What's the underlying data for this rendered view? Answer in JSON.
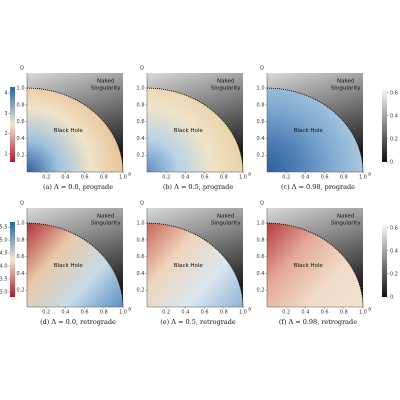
{
  "chart_data": [
    {
      "type": "heatmap",
      "caption": "(a) Λ = 0.0, prograde",
      "xlabel": "a",
      "ylabel": "Q",
      "xlim": [
        0,
        1
      ],
      "ylim": [
        0,
        1.18
      ],
      "xticks": [
        0.2,
        0.4,
        0.6,
        0.8,
        {
          "value": 1,
          "label": "1.0"
        }
      ],
      "yticks": [
        0.2,
        0.4,
        0.6,
        0.8,
        {
          "value": 1,
          "label": "1.0"
        }
      ],
      "region_labels": [
        "Black Hole",
        "Naked",
        "Singularity"
      ],
      "gradient": "radial",
      "colors": [
        "#2f5f9e",
        "#9fc3dd",
        "#efe3c8",
        "#e8c49a"
      ],
      "naked_colors": [
        "#d9d9d9",
        "#1a1a1a"
      ],
      "colorbar": {
        "side": "left",
        "lim": [
          0.6,
          4.3
        ],
        "ticks": [
          1,
          2,
          3,
          4
        ],
        "colors": [
          "#b2182b",
          "#f4e5d0",
          "#2166ac"
        ]
      }
    },
    {
      "type": "heatmap",
      "caption": "(b) Λ = 0.5, prograde",
      "xlabel": "a",
      "ylabel": "Q",
      "xlim": [
        0,
        1
      ],
      "ylim": [
        0,
        1.18
      ],
      "xticks": [
        0.2,
        0.4,
        0.6,
        0.8,
        {
          "value": 1,
          "label": "1.0"
        }
      ],
      "yticks": [
        0.2,
        0.4,
        0.6,
        0.8,
        {
          "value": 1,
          "label": "1.0"
        }
      ],
      "region_labels": [
        "Black Hole",
        "Naked",
        "Singularity"
      ],
      "gradient": "radial",
      "colors": [
        "#5f8fc0",
        "#b8d3e6",
        "#eee3c9",
        "#ecd2a8"
      ],
      "naked_colors": [
        "#d9d9d9",
        "#1a1a1a"
      ]
    },
    {
      "type": "heatmap",
      "caption": "(c) Λ = 0.98, prograde",
      "xlabel": "a",
      "ylabel": "Q",
      "xlim": [
        0,
        1
      ],
      "ylim": [
        0,
        1.18
      ],
      "xticks": [
        0.2,
        0.4,
        0.6,
        0.8,
        {
          "value": 1,
          "label": "1.0"
        }
      ],
      "yticks": [
        0.2,
        0.4,
        0.6,
        0.8,
        {
          "value": 1,
          "label": "1.0"
        }
      ],
      "region_labels": [
        "Black Hole",
        "Naked",
        "Singularity"
      ],
      "gradient": "radial",
      "colors": [
        "#2f5f9e",
        "#4e7fb6",
        "#7ea9cf",
        "#a9c8e0"
      ],
      "naked_colors": [
        "#d9d9d9",
        "#1a1a1a"
      ],
      "colorbar": {
        "side": "right",
        "lim": [
          0,
          0.65
        ],
        "ticks": [
          {
            "value": 0,
            "label": "0."
          },
          0.2,
          0.4,
          0.6
        ],
        "colors": [
          "#111111",
          "#ffffff"
        ]
      }
    },
    {
      "type": "heatmap",
      "caption": "(d) Λ = 0.0, retrograde",
      "xlabel": "a",
      "ylabel": "Q",
      "xlim": [
        0,
        1
      ],
      "ylim": [
        0,
        1.18
      ],
      "xticks": [
        0.2,
        0.4,
        0.6,
        0.8,
        {
          "value": 1,
          "label": "1.0"
        }
      ],
      "yticks": [
        0.2,
        0.4,
        0.6,
        0.8,
        {
          "value": 1,
          "label": "1.0"
        }
      ],
      "region_labels": [
        "Black Hole",
        "Naked",
        "Singularity"
      ],
      "gradient": "linear",
      "colors": [
        "#b2323a",
        "#e8c8a8",
        "#c7dbe8",
        "#5b8ec2"
      ],
      "naked_colors": [
        "#d9d9d9",
        "#1a1a1a"
      ],
      "colorbar": {
        "side": "left",
        "lim": [
          2.8,
          5.7
        ],
        "ticks": [
          {
            "value": 3,
            "label": "3.0"
          },
          3.5,
          {
            "value": 4,
            "label": "4.0"
          },
          4.5,
          {
            "value": 5,
            "label": "5.0"
          },
          5.5
        ],
        "colors": [
          "#b2182b",
          "#f4e5d0",
          "#2166ac"
        ]
      }
    },
    {
      "type": "heatmap",
      "caption": "(e) Λ = 0.5, retrograde",
      "xlabel": "a",
      "ylabel": "Q",
      "xlim": [
        0,
        1
      ],
      "ylim": [
        0,
        1.18
      ],
      "xticks": [
        0.2,
        0.4,
        0.6,
        0.8,
        {
          "value": 1,
          "label": "1.0"
        }
      ],
      "yticks": [
        0.2,
        0.4,
        0.6,
        0.8,
        {
          "value": 1,
          "label": "1.0"
        }
      ],
      "region_labels": [
        "Black Hole",
        "Naked",
        "Singularity"
      ],
      "gradient": "linear",
      "colors": [
        "#c9645a",
        "#efd5bd",
        "#dbe6ee",
        "#8fb4d6"
      ],
      "naked_colors": [
        "#d9d9d9",
        "#1a1a1a"
      ]
    },
    {
      "type": "heatmap",
      "caption": "(f) Λ = 0.98, retrograde",
      "xlabel": "a",
      "ylabel": "Q",
      "xlim": [
        0,
        1
      ],
      "ylim": [
        0,
        1.18
      ],
      "xticks": [
        0.2,
        0.4,
        0.6,
        0.8,
        {
          "value": 1,
          "label": "1.0"
        }
      ],
      "yticks": [
        0.2,
        0.4,
        0.6,
        0.8,
        {
          "value": 1,
          "label": "1.0"
        }
      ],
      "region_labels": [
        "Black Hole",
        "Naked",
        "Singularity"
      ],
      "gradient": "linear",
      "colors": [
        "#b83a3f",
        "#e3aa98",
        "#f0dcc7",
        "#f2e3cf"
      ],
      "naked_colors": [
        "#d9d9d9",
        "#1a1a1a"
      ],
      "colorbar": {
        "side": "right",
        "lim": [
          0,
          0.65
        ],
        "ticks": [
          {
            "value": 0,
            "label": "0."
          },
          0.2,
          0.4,
          0.6
        ],
        "colors": [
          "#111111",
          "#ffffff"
        ]
      }
    }
  ]
}
